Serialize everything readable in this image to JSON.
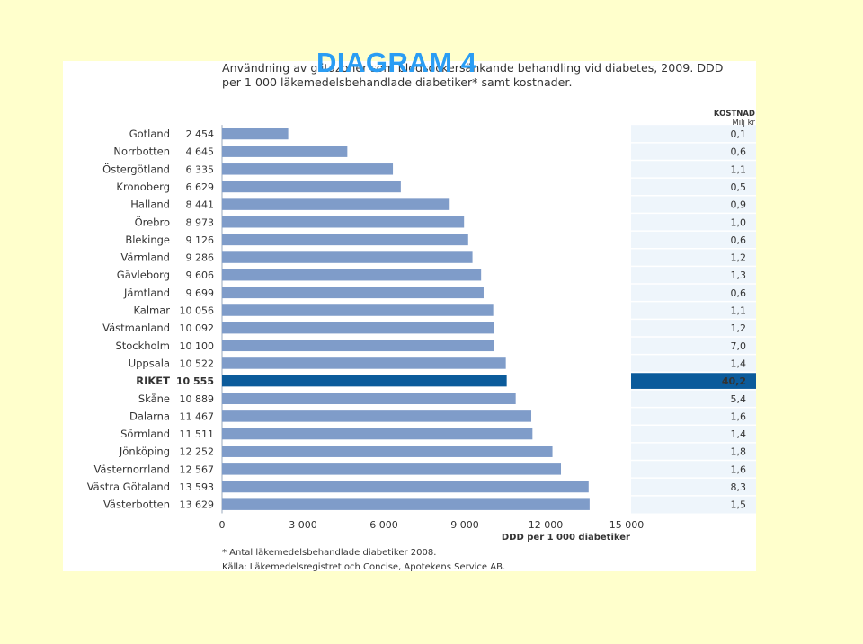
{
  "overlay_title": "DIAGRAM 4",
  "figure": {
    "title": "Användning av glitazoner som blodsockersänkande behandling vid diabetes, 2009. DDD per 1 000 läkemedelsbehandlade diabetiker* samt kostnader.",
    "footnote": "* Antal läkemedelsbehandlade diabetiker 2008.",
    "source": "Källa: Läkemedelsregistret och Concise, Apotekens Service AB."
  },
  "colors": {
    "page_background": "#ffffcc",
    "bar": "#7f9cc9",
    "highlight": "#0b5b9b",
    "cost_column": "#eef5fb",
    "cost_row_line": "#ffffff",
    "overlay_title": "#2a9df4"
  },
  "chart_data": {
    "type": "bar",
    "orientation": "horizontal",
    "xlabel": "DDD per 1 000 diabetiker",
    "xlim": [
      0,
      15000
    ],
    "xticks": [
      0,
      3000,
      6000,
      9000,
      12000,
      15000
    ],
    "xtick_labels": [
      "0",
      "3 000",
      "6 000",
      "9 000",
      "12 000",
      "15 000"
    ],
    "categories": [
      "Gotland",
      "Norrbotten",
      "Östergötland",
      "Kronoberg",
      "Halland",
      "Örebro",
      "Blekinge",
      "Värmland",
      "Gävleborg",
      "Jämtland",
      "Kalmar",
      "Västmanland",
      "Stockholm",
      "Uppsala",
      "RIKET",
      "Skåne",
      "Dalarna",
      "Sörmland",
      "Jönköping",
      "Västernorrland",
      "Västra Götaland",
      "Västerbotten"
    ],
    "values": [
      2454,
      4645,
      6335,
      6629,
      8441,
      8973,
      9126,
      9286,
      9606,
      9699,
      10056,
      10092,
      10100,
      10522,
      10555,
      10889,
      11467,
      11511,
      12252,
      12567,
      13593,
      13629
    ],
    "value_labels": [
      "2 454",
      "4 645",
      "6 335",
      "6 629",
      "8 441",
      "8 973",
      "9 126",
      "9 286",
      "9 606",
      "9 699",
      "10 056",
      "10 092",
      "10 100",
      "10 522",
      "10 555",
      "10 889",
      "11 467",
      "11 511",
      "12 252",
      "12 567",
      "13 593",
      "13 629"
    ],
    "highlight": "RIKET",
    "cost_header": [
      "KOSTNAD",
      "Milj kr"
    ],
    "costs": [
      "0,1",
      "0,6",
      "1,1",
      "0,5",
      "0,9",
      "1,0",
      "0,6",
      "1,2",
      "1,3",
      "0,6",
      "1,1",
      "1,2",
      "7,0",
      "1,4",
      "40,2",
      "5,4",
      "1,6",
      "1,4",
      "1,8",
      "1,6",
      "8,3",
      "1,5"
    ]
  }
}
